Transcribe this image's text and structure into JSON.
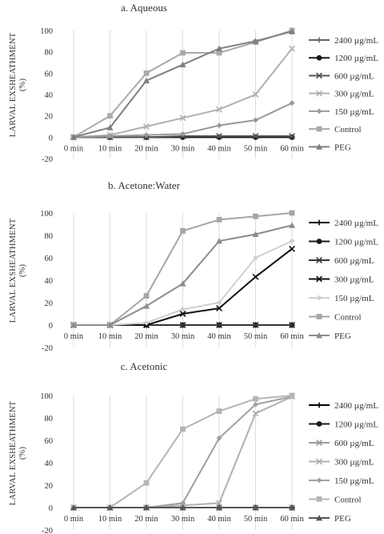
{
  "chart_data": [
    {
      "type": "line",
      "title": "a. Aqueous",
      "ylabel": "LARVAL EXSHEATHMENT",
      "ylabel_unit": "(%)",
      "x": [
        "0 min",
        "10 min",
        "20 min",
        "30 min",
        "40 min",
        "50 min",
        "60 min"
      ],
      "ylim": [
        -20,
        100
      ],
      "yticks": [
        -20,
        0,
        20,
        40,
        60,
        80,
        100
      ],
      "grid": "vertical",
      "legend": "right",
      "series": [
        {
          "name": "2400 µg/mL",
          "values": [
            0,
            0,
            0,
            0,
            0,
            0,
            0
          ],
          "color": "#666666",
          "marker": "plus"
        },
        {
          "name": "1200 µg/mL",
          "values": [
            0,
            0,
            0,
            0,
            0,
            0,
            0
          ],
          "color": "#1a1a1a",
          "marker": "circle"
        },
        {
          "name": "600 µg/mL",
          "values": [
            0,
            0,
            0,
            1,
            1,
            1,
            1
          ],
          "color": "#555555",
          "marker": "x"
        },
        {
          "name": "300 µg/mL",
          "values": [
            0,
            2,
            10,
            18,
            26,
            40,
            83
          ],
          "color": "#b0b0b0",
          "marker": "x"
        },
        {
          "name": "150 µg/mL",
          "values": [
            0,
            1,
            2,
            3,
            11,
            16,
            32
          ],
          "color": "#999999",
          "marker": "diamond"
        },
        {
          "name": "Control",
          "values": [
            0,
            20,
            60,
            79,
            79,
            89,
            100
          ],
          "color": "#aaaaaa",
          "marker": "square"
        },
        {
          "name": "PEG",
          "values": [
            0,
            9,
            53,
            68,
            83,
            90,
            99
          ],
          "color": "#7f7f7f",
          "marker": "triangle"
        }
      ]
    },
    {
      "type": "line",
      "title": "b. Acetone:Water",
      "ylabel": "LARVAL EXSHEATHMENT",
      "ylabel_unit": "(%)",
      "x": [
        "0 min",
        "10 min",
        "20 min",
        "30 min",
        "40 min",
        "50 min",
        "60 min"
      ],
      "ylim": [
        -20,
        100
      ],
      "yticks": [
        -20,
        0,
        20,
        40,
        60,
        80,
        100
      ],
      "grid": "vertical",
      "legend": "right",
      "series": [
        {
          "name": "2400 µg/mL",
          "values": [
            0,
            0,
            0,
            0,
            0,
            0,
            0
          ],
          "color": "#000000",
          "marker": "plus"
        },
        {
          "name": "1200 µg/mL",
          "values": [
            0,
            0,
            0,
            0,
            0,
            0,
            0
          ],
          "color": "#1a1a1a",
          "marker": "circle"
        },
        {
          "name": "600 µg/mL",
          "values": [
            0,
            0,
            0,
            0,
            0,
            0,
            0
          ],
          "color": "#333333",
          "marker": "x"
        },
        {
          "name": "300 µg/mL",
          "values": [
            0,
            0,
            0,
            10,
            15,
            43,
            68
          ],
          "color": "#111111",
          "marker": "x"
        },
        {
          "name": "150 µg/mL",
          "values": [
            0,
            0,
            2,
            14,
            20,
            60,
            75
          ],
          "color": "#cfcfcf",
          "marker": "diamond"
        },
        {
          "name": "Control",
          "values": [
            0,
            0,
            26,
            84,
            94,
            97,
            100
          ],
          "color": "#a6a6a6",
          "marker": "square"
        },
        {
          "name": "PEG",
          "values": [
            0,
            0,
            17,
            37,
            75,
            81,
            89
          ],
          "color": "#8c8c8c",
          "marker": "triangle"
        }
      ]
    },
    {
      "type": "line",
      "title": "c. Acetonic",
      "ylabel": "LARVAL EXSHEATHMENT",
      "ylabel_unit": "(%)",
      "x": [
        "0 min",
        "10 min",
        "20 min",
        "30 min",
        "40 min",
        "50 min",
        "60 min"
      ],
      "ylim": [
        -20,
        100
      ],
      "yticks": [
        -20,
        0,
        20,
        40,
        60,
        80,
        100
      ],
      "grid": "vertical",
      "legend": "right",
      "series": [
        {
          "name": "2400 µg/mL",
          "values": [
            0,
            0,
            0,
            0,
            0,
            0,
            0
          ],
          "color": "#000000",
          "marker": "plus"
        },
        {
          "name": "1200 µg/mL",
          "values": [
            0,
            0,
            0,
            0,
            0,
            0,
            0
          ],
          "color": "#1a1a1a",
          "marker": "circle"
        },
        {
          "name": "600 µg/mL",
          "values": [
            0,
            0,
            0,
            0,
            0,
            0,
            0
          ],
          "color": "#999999",
          "marker": "x"
        },
        {
          "name": "300 µg/mL",
          "values": [
            0,
            0,
            0,
            2,
            4,
            84,
            99
          ],
          "color": "#b0b0b0",
          "marker": "x"
        },
        {
          "name": "150 µg/mL",
          "values": [
            0,
            0,
            0,
            4,
            62,
            92,
            99
          ],
          "color": "#a0a0a0",
          "marker": "diamond"
        },
        {
          "name": "Control",
          "values": [
            0,
            0,
            22,
            70,
            86,
            97,
            100
          ],
          "color": "#b5b5b5",
          "marker": "square"
        },
        {
          "name": "PEG",
          "values": [
            0,
            0,
            0,
            0,
            0,
            0,
            0
          ],
          "color": "#555555",
          "marker": "triangle"
        }
      ]
    }
  ]
}
